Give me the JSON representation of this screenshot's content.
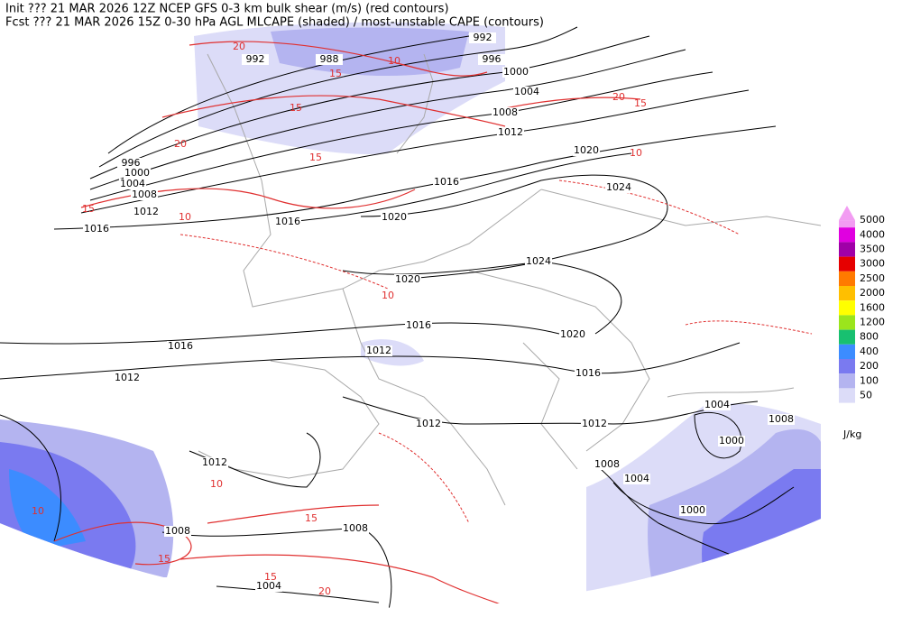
{
  "header": {
    "line1": "Init  ??? 21 MAR 2026 12Z  NCEP GFS 0-3 km bulk shear (m/s) (red contours)",
    "line2": "Fcst ??? 21 MAR 2026 15Z  0-30 hPa AGL MLCAPE (shaded) / most-unstable CAPE (contours)"
  },
  "colorbar": {
    "unit": "J/kg",
    "levels": [
      {
        "label": 5000,
        "color": "#f29cf2"
      },
      {
        "label": 4000,
        "color": "#e000e0"
      },
      {
        "label": 3500,
        "color": "#a000a8"
      },
      {
        "label": 3000,
        "color": "#e60000"
      },
      {
        "label": 2500,
        "color": "#ff7a00"
      },
      {
        "label": 2000,
        "color": "#ffbf00"
      },
      {
        "label": 1600,
        "color": "#ffff00"
      },
      {
        "label": 1200,
        "color": "#9be51c"
      },
      {
        "label": 800,
        "color": "#18c070"
      },
      {
        "label": 400,
        "color": "#3c8cff"
      },
      {
        "label": 200,
        "color": "#7a7af0"
      },
      {
        "label": 100,
        "color": "#b4b4f0"
      },
      {
        "label": 50,
        "color": "#dcdcf8"
      }
    ]
  },
  "isobar_labels": [
    "992",
    "988",
    "992",
    "996",
    "1000",
    "1004",
    "1008",
    "1012",
    "1020",
    "1024",
    "1016",
    "1020",
    "1016",
    "1012",
    "1016",
    "1008",
    "1004",
    "1000",
    "996",
    "1024",
    "1020",
    "1016",
    "1020",
    "1016",
    "1016",
    "1012",
    "1012",
    "1012",
    "1012",
    "1004",
    "1008",
    "1000",
    "1008",
    "1004",
    "1000",
    "1012",
    "1008",
    "1008",
    "1004"
  ],
  "shear_labels": [
    "20",
    "15",
    "10",
    "15",
    "20",
    "15",
    "10",
    "15",
    "20",
    "15",
    "10",
    "10",
    "10",
    "10",
    "15",
    "15",
    "20",
    "15"
  ]
}
